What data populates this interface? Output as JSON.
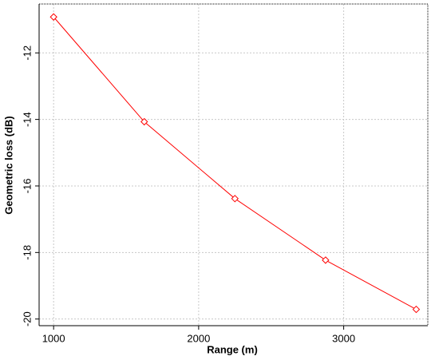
{
  "chart_data": {
    "type": "line",
    "x_label": "Range (m)",
    "y_label": "Geometric loss (dB)",
    "x": [
      1000,
      1625,
      2250,
      2875,
      3500
    ],
    "series": [
      {
        "color": "#ff0000",
        "values": [
          -10.92,
          -14.07,
          -16.38,
          -18.23,
          -19.71
        ]
      }
    ],
    "xlim": [
      900,
      3580
    ],
    "xticks": [
      1000,
      2000,
      3000
    ],
    "ylim": [
      -20.2,
      -10.53
    ],
    "yticks": [
      -20,
      -18,
      -16,
      -14,
      -12
    ],
    "grid": true
  }
}
